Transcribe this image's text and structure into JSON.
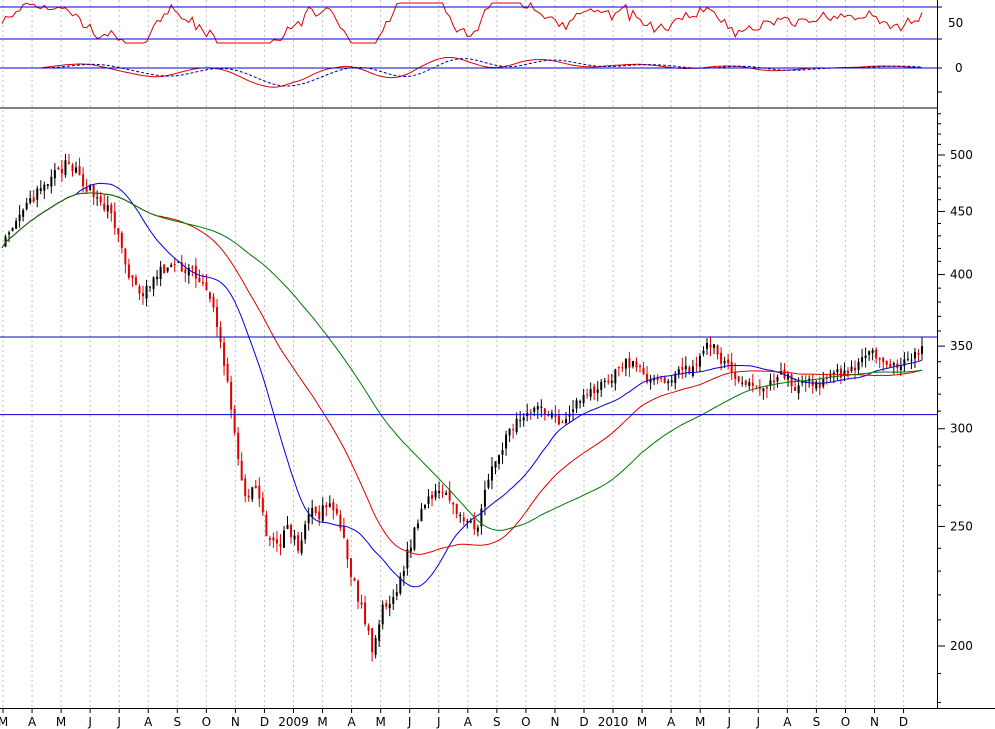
{
  "chart_data": {
    "type": "candlestick",
    "scale": "log",
    "colors": {
      "up_candle": "#000000",
      "down_candle": "#e00000",
      "ma_short": "#0000dd",
      "ma_medium": "#dd0000",
      "ma_long": "#007700",
      "horizontal_lines": "#0000cc",
      "oscillator": "#dd0000",
      "macd_signal": "#0000aa",
      "grid": "#c0c0c0"
    },
    "x_tick_labels": [
      "M",
      "A",
      "M",
      "J",
      "J",
      "A",
      "S",
      "O",
      "N",
      "D",
      "2009",
      "M",
      "A",
      "M",
      "J",
      "J",
      "A",
      "S",
      "O",
      "N",
      "D",
      "2010",
      "M",
      "A",
      "M",
      "J",
      "J",
      "A",
      "S",
      "O",
      "N",
      "D"
    ],
    "main_panel": {
      "y_ticks": [
        200,
        250,
        300,
        350,
        400,
        450,
        500
      ],
      "y_range": [
        175,
        560
      ],
      "horizontal_lines": [
        356,
        308
      ],
      "close_path": [
        [
          0,
          425
        ],
        [
          3,
          432
        ],
        [
          6,
          450
        ],
        [
          9,
          462
        ],
        [
          12,
          470
        ],
        [
          15,
          482
        ],
        [
          18,
          490
        ],
        [
          21,
          484
        ],
        [
          24,
          472
        ],
        [
          27,
          462
        ],
        [
          30,
          452
        ],
        [
          33,
          430
        ],
        [
          36,
          400
        ],
        [
          39,
          384
        ],
        [
          42,
          392
        ],
        [
          45,
          402
        ],
        [
          48,
          407
        ],
        [
          51,
          405
        ],
        [
          54,
          404
        ],
        [
          57,
          392
        ],
        [
          60,
          374
        ],
        [
          63,
          340
        ],
        [
          66,
          298
        ],
        [
          69,
          262
        ],
        [
          72,
          268
        ],
        [
          75,
          248
        ],
        [
          78,
          240
        ],
        [
          81,
          250
        ],
        [
          84,
          240
        ],
        [
          87,
          256
        ],
        [
          90,
          256
        ],
        [
          93,
          260
        ],
        [
          96,
          250
        ],
        [
          99,
          228
        ],
        [
          102,
          215
        ],
        [
          105,
          198
        ],
        [
          108,
          214
        ],
        [
          111,
          218
        ],
        [
          114,
          232
        ],
        [
          117,
          248
        ],
        [
          120,
          262
        ],
        [
          123,
          268
        ],
        [
          126,
          268
        ],
        [
          129,
          258
        ],
        [
          132,
          250
        ],
        [
          135,
          252
        ],
        [
          138,
          272
        ],
        [
          141,
          286
        ],
        [
          144,
          298
        ],
        [
          147,
          306
        ],
        [
          150,
          312
        ],
        [
          153,
          312
        ],
        [
          156,
          308
        ],
        [
          159,
          304
        ],
        [
          162,
          314
        ],
        [
          165,
          318
        ],
        [
          168,
          322
        ],
        [
          171,
          328
        ],
        [
          174,
          332
        ],
        [
          177,
          340
        ],
        [
          180,
          336
        ],
        [
          183,
          330
        ],
        [
          186,
          326
        ],
        [
          189,
          330
        ],
        [
          192,
          333
        ],
        [
          195,
          336
        ],
        [
          198,
          342
        ],
        [
          201,
          352
        ],
        [
          204,
          342
        ],
        [
          207,
          332
        ],
        [
          210,
          327
        ],
        [
          213,
          325
        ],
        [
          216,
          324
        ],
        [
          219,
          329
        ],
        [
          222,
          333
        ],
        [
          225,
          323
        ],
        [
          228,
          326
        ],
        [
          231,
          327
        ],
        [
          234,
          327
        ],
        [
          237,
          333
        ],
        [
          240,
          333
        ],
        [
          243,
          340
        ],
        [
          246,
          343
        ],
        [
          249,
          345
        ],
        [
          252,
          340
        ],
        [
          255,
          338
        ],
        [
          258,
          340
        ],
        [
          261,
          350
        ]
      ]
    },
    "upper_panel": {
      "y_ticks": [
        50,
        0
      ],
      "horizontal_lines": [
        70,
        30
      ]
    }
  }
}
